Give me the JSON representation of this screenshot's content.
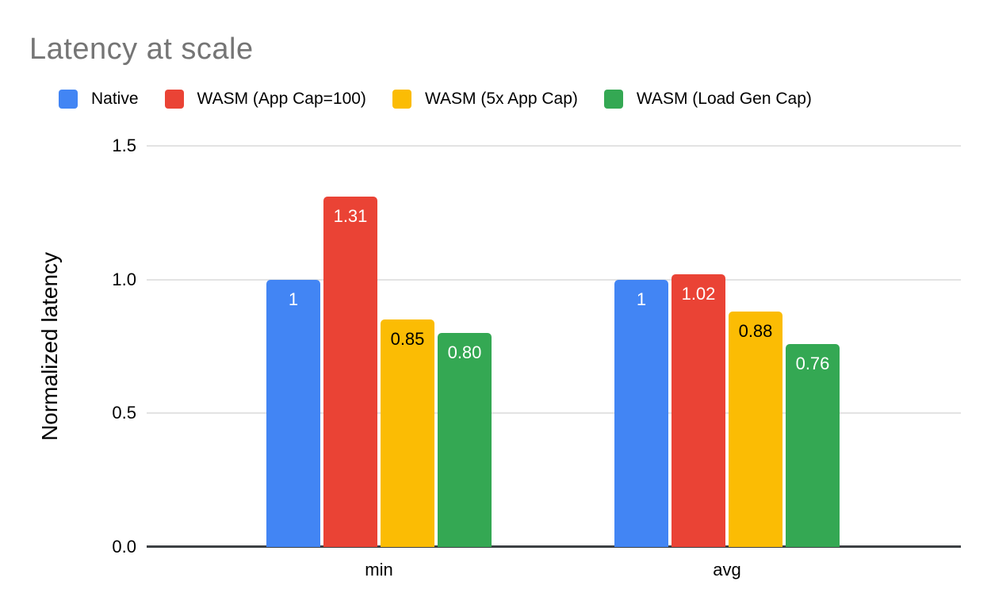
{
  "chart_data": {
    "type": "bar",
    "title": "Latency at scale",
    "xlabel": "",
    "ylabel": "Normalized latency",
    "categories": [
      "min",
      "avg"
    ],
    "series": [
      {
        "name": "Native",
        "color": "#4285F4",
        "label_color": "#ffffff",
        "values": [
          1.0,
          1.0
        ],
        "labels": [
          "1",
          "1"
        ]
      },
      {
        "name": "WASM (App Cap=100)",
        "color": "#EA4335",
        "label_color": "#ffffff",
        "values": [
          1.31,
          1.02
        ],
        "labels": [
          "1.31",
          "1.02"
        ]
      },
      {
        "name": "WASM (5x App Cap)",
        "color": "#FBBC04",
        "label_color": "#000000",
        "values": [
          0.85,
          0.88
        ],
        "labels": [
          "0.85",
          "0.88"
        ]
      },
      {
        "name": "WASM (Load Gen Cap)",
        "color": "#34A853",
        "label_color": "#ffffff",
        "values": [
          0.8,
          0.76
        ],
        "labels": [
          "0.80",
          "0.76"
        ]
      }
    ],
    "ylim": [
      0,
      1.5
    ],
    "yticks": [
      "0.0",
      "0.5",
      "1.0",
      "1.5"
    ],
    "grid": "horizontal",
    "legend_position": "top",
    "colors": {
      "title_text": "#757575",
      "gridline": "#e3e3e3",
      "axis_line": "#3c4043",
      "background": "#ffffff"
    }
  }
}
